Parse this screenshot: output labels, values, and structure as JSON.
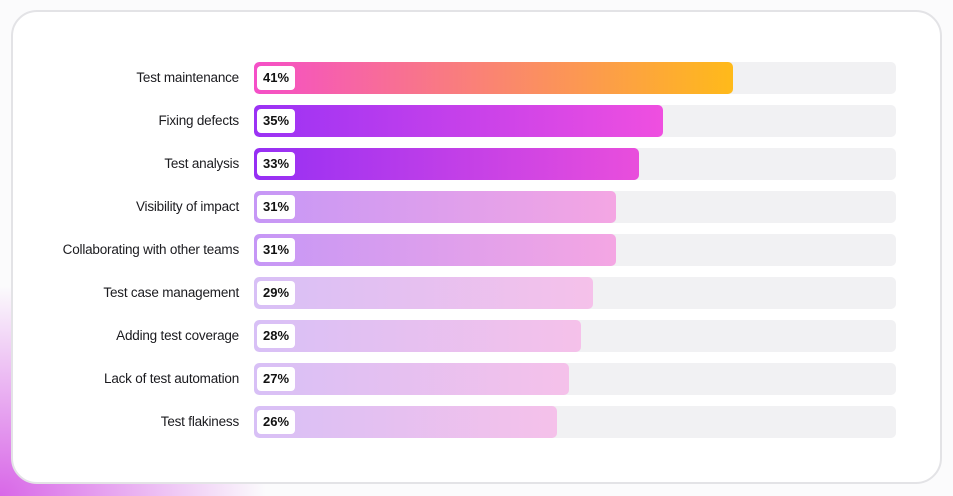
{
  "chart_data": {
    "type": "bar",
    "orientation": "horizontal",
    "title": "",
    "xlabel": "",
    "ylabel": "",
    "xlim": [
      0,
      55
    ],
    "grid": false,
    "categories": [
      "Test maintenance",
      "Fixing defects",
      "Test analysis",
      "Visibility of impact",
      "Collaborating with other teams",
      "Test case management",
      "Adding test coverage",
      "Lack of test automation",
      "Test flakiness"
    ],
    "values": [
      41,
      35,
      33,
      31,
      31,
      29,
      28,
      27,
      26
    ],
    "value_labels": [
      "41%",
      "35%",
      "33%",
      "31%",
      "31%",
      "29%",
      "28%",
      "27%",
      "26%"
    ],
    "bar_gradients": [
      [
        "#f54fc8",
        "#ffba1a"
      ],
      [
        "#9b32f5",
        "#ef4fe0"
      ],
      [
        "#962ff4",
        "#e94edc"
      ],
      [
        "#c697f6",
        "#f4a6e3"
      ],
      [
        "#c697f6",
        "#f4a6e3"
      ],
      [
        "#d8c0f6",
        "#f5c1ea"
      ],
      [
        "#d8c0f6",
        "#f5c1ea"
      ],
      [
        "#d8c0f6",
        "#f5c1ea"
      ],
      [
        "#d8c0f6",
        "#f5c1ea"
      ]
    ],
    "track_color": "#f1f1f3"
  }
}
